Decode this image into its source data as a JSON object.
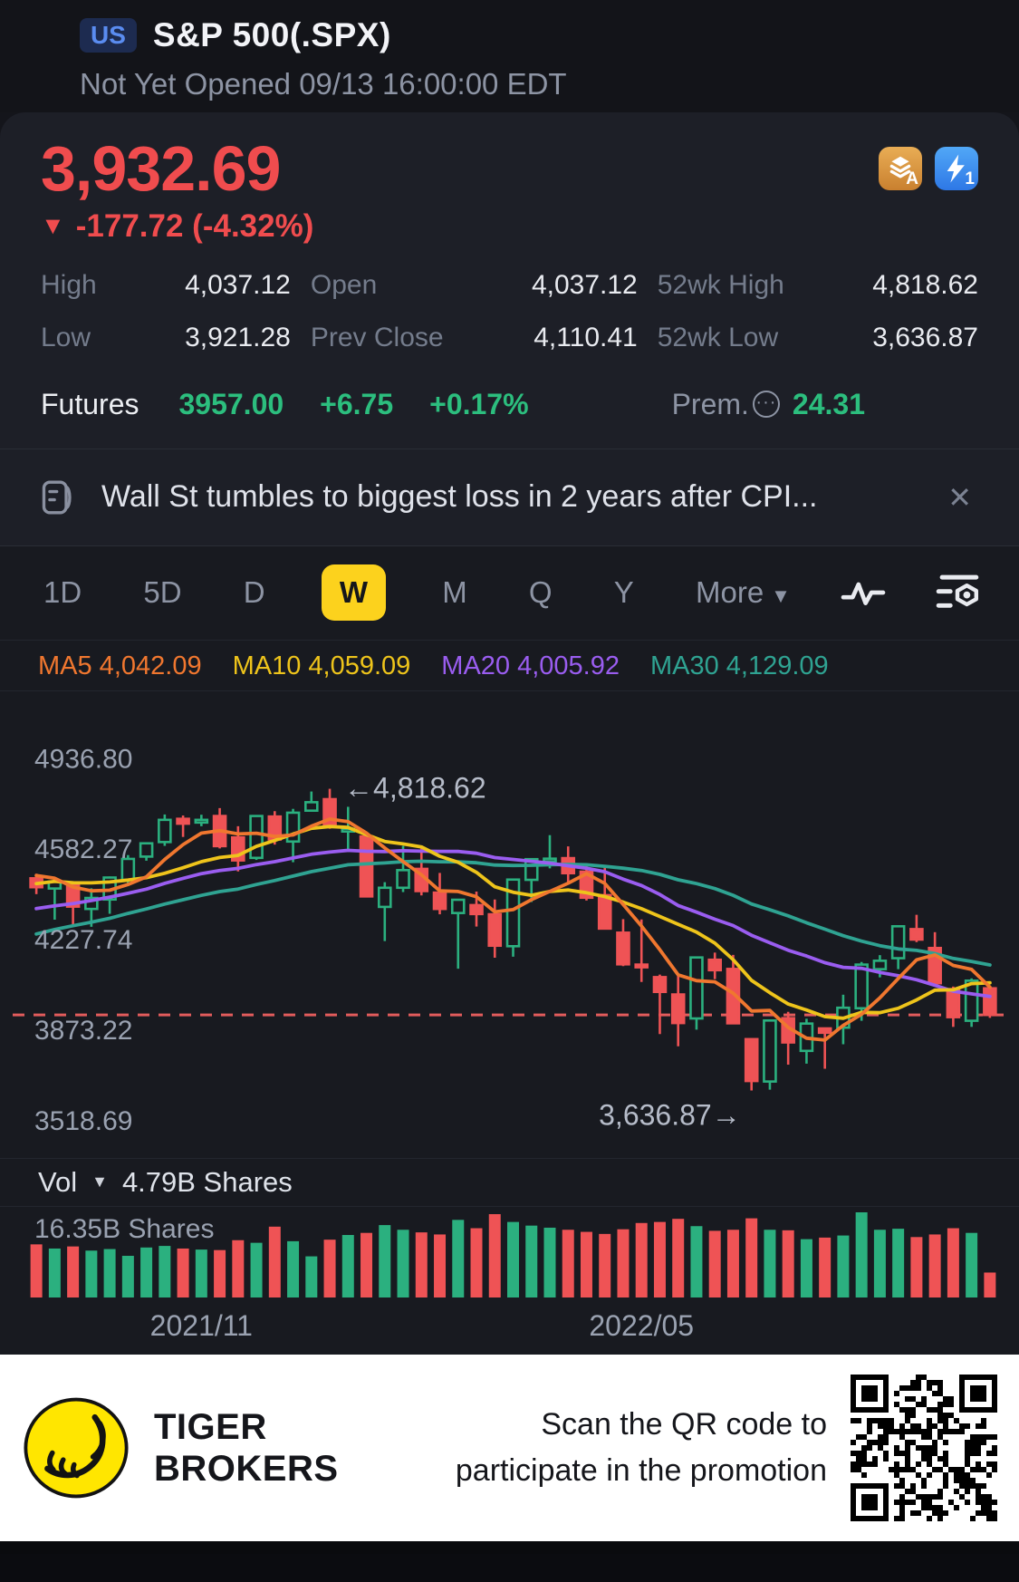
{
  "header": {
    "market_badge": "US",
    "symbol_title": "S&P 500(.SPX)",
    "status_line": "Not Yet Opened 09/13 16:00:00 EDT"
  },
  "quote": {
    "last_price": "3,932.69",
    "change_arrow": "▼",
    "change_text": "-177.72 (-4.32%)",
    "badges": [
      {
        "icon": "layers-icon",
        "label": "A"
      },
      {
        "icon": "lightning-icon",
        "label": "1"
      }
    ],
    "stats_rows": [
      [
        {
          "label": "High",
          "value": "4,037.12"
        },
        {
          "label": "Open",
          "value": "4,037.12"
        },
        {
          "label": "52wk High",
          "value": "4,818.62"
        }
      ],
      [
        {
          "label": "Low",
          "value": "3,921.28"
        },
        {
          "label": "Prev Close",
          "value": "4,110.41"
        },
        {
          "label": "52wk Low",
          "value": "3,636.87"
        }
      ]
    ],
    "futures": {
      "label": "Futures",
      "price": "3957.00",
      "change": "+6.75",
      "change_pct": "+0.17%",
      "prem_label": "Prem.",
      "prem_icon": "ellipsis-circle-icon",
      "prem_value": "24.31"
    }
  },
  "news_bar": {
    "icon": "news-doc-icon",
    "headline": "Wall St tumbles to biggest loss in 2 years after CPI...",
    "close_glyph": "✕"
  },
  "toolbar": {
    "tabs": [
      {
        "label": "1D"
      },
      {
        "label": "5D"
      },
      {
        "label": "D"
      },
      {
        "label": "W",
        "active": true
      },
      {
        "label": "M"
      },
      {
        "label": "Q"
      },
      {
        "label": "Y"
      },
      {
        "label": "More",
        "dropdown": true,
        "caret": "▼"
      }
    ],
    "icons": [
      "pulse-line-icon",
      "indicator-settings-icon"
    ]
  },
  "indicators": [
    {
      "name": "MA5",
      "value": "4,042.09",
      "color": "#f0772f"
    },
    {
      "name": "MA10",
      "value": "4,059.09",
      "color": "#eec41b"
    },
    {
      "name": "MA20",
      "value": "4,005.92",
      "color": "#9a5df0"
    },
    {
      "name": "MA30",
      "value": "4,129.09",
      "color": "#2fa392"
    }
  ],
  "volume_header": {
    "label": "Vol",
    "caret": "▼",
    "value": "4.79B Shares"
  },
  "colors": {
    "up": "#2bb07f",
    "down": "#ef5355",
    "dashed": "#e25c5c",
    "axis_text": "#9aa2b1",
    "annotation_text": "#b6bcc9",
    "accent_yellow": "#fcd21d",
    "price_red": "#f04c4e",
    "green_text": "#2cbe7e"
  },
  "chart_data": {
    "type": "candlestick",
    "timeframe": "W",
    "y_axis_labels": [
      4936.8,
      4582.27,
      4227.74,
      3873.22,
      3518.69
    ],
    "y_domain": [
      3440,
      5030
    ],
    "x_axis_labels": [
      {
        "label": "2021/11",
        "index": 9
      },
      {
        "label": "2022/05",
        "index": 33
      }
    ],
    "dashed_line_price": 3932.69,
    "high_annotation": {
      "text": "←4,818.62",
      "price": 4818.62
    },
    "low_annotation": {
      "text": "3,636.87→",
      "price": 3636.87
    },
    "ma_periods": [
      30,
      20,
      10,
      5
    ],
    "ma_colors": {
      "5": "#f0772f",
      "10": "#eec41b",
      "20": "#9a5df0",
      "30": "#2fa392"
    },
    "ma_history_closes": [
      3906,
      3932,
      3910,
      3972,
      4020,
      3968,
      4077,
      4129,
      4167,
      4180,
      4156,
      4232,
      4183,
      4155,
      4202,
      4241,
      4280,
      4247,
      4290,
      4327,
      4352,
      4369,
      4411,
      4395,
      4437,
      4468,
      4509,
      4528,
      4466,
      4458
    ],
    "candles": [
      [
        4468,
        4486,
        4406,
        4433
      ],
      [
        4428,
        4465,
        4306,
        4455
      ],
      [
        4442,
        4457,
        4288,
        4357
      ],
      [
        4348,
        4429,
        4278,
        4391
      ],
      [
        4385,
        4475,
        4329,
        4471
      ],
      [
        4462,
        4559,
        4447,
        4544
      ],
      [
        4553,
        4608,
        4537,
        4605
      ],
      [
        4610,
        4718,
        4595,
        4697
      ],
      [
        4701,
        4714,
        4630,
        4682
      ],
      [
        4689,
        4717,
        4672,
        4697
      ],
      [
        4712,
        4743,
        4585,
        4594
      ],
      [
        4628,
        4672,
        4495,
        4538
      ],
      [
        4548,
        4713,
        4540,
        4712
      ],
      [
        4710,
        4731,
        4600,
        4620
      ],
      [
        4612,
        4740,
        4531,
        4725
      ],
      [
        4733,
        4808,
        4733,
        4766
      ],
      [
        4778,
        4818.62,
        4662,
        4677
      ],
      [
        4655,
        4748,
        4582,
        4662
      ],
      [
        4632,
        4632,
        4395,
        4397
      ],
      [
        4356,
        4453,
        4222,
        4431
      ],
      [
        4431,
        4595,
        4414,
        4500
      ],
      [
        4505,
        4590,
        4401,
        4418
      ],
      [
        4412,
        4489,
        4327,
        4348
      ],
      [
        4332,
        4385,
        4114,
        4384
      ],
      [
        4363,
        4416,
        4279,
        4328
      ],
      [
        4327,
        4385,
        4157,
        4204
      ],
      [
        4202,
        4465,
        4161,
        4463
      ],
      [
        4462,
        4546,
        4375,
        4543
      ],
      [
        4541,
        4637,
        4507,
        4545
      ],
      [
        4547,
        4593,
        4450,
        4488
      ],
      [
        4494,
        4520,
        4381,
        4392
      ],
      [
        4402,
        4512,
        4267,
        4271
      ],
      [
        4255,
        4308,
        4124,
        4131
      ],
      [
        4130,
        4307,
        4062,
        4123
      ],
      [
        4081,
        4091,
        3858,
        4023
      ],
      [
        4013,
        4090,
        3810,
        3901
      ],
      [
        3919,
        4158,
        3875,
        4158
      ],
      [
        4149,
        4177,
        4073,
        4108
      ],
      [
        4113,
        4168,
        3900,
        3900
      ],
      [
        3838,
        3838,
        3636.87,
        3674
      ],
      [
        3672,
        3913,
        3640,
        3911
      ],
      [
        3920,
        3945,
        3738,
        3825
      ],
      [
        3792,
        3918,
        3742,
        3899
      ],
      [
        3880,
        3880,
        3722,
        3863
      ],
      [
        3883,
        4012,
        3818,
        3961
      ],
      [
        3959,
        4140,
        3910,
        4130
      ],
      [
        4112,
        4167,
        4080,
        4145
      ],
      [
        4155,
        4280,
        4112,
        4280
      ],
      [
        4269,
        4325,
        4218,
        4228
      ],
      [
        4195,
        4257,
        4057,
        4057
      ],
      [
        4034,
        4044,
        3886,
        3924
      ],
      [
        3910,
        4076,
        3886,
        4067
      ],
      [
        4037.12,
        4037.12,
        3921.28,
        3932.69
      ]
    ],
    "volumes": [
      10.2,
      9.4,
      9.8,
      9.0,
      9.3,
      8.0,
      9.6,
      9.9,
      9.4,
      9.2,
      9.1,
      11.0,
      10.5,
      13.6,
      10.8,
      7.9,
      11.1,
      12.0,
      12.4,
      13.9,
      13.0,
      12.5,
      12.1,
      14.9,
      13.3,
      16.0,
      14.5,
      13.8,
      13.4,
      13.0,
      12.6,
      12.2,
      13.1,
      14.3,
      14.5,
      15.1,
      13.7,
      12.8,
      13.0,
      15.2,
      13.0,
      12.9,
      11.2,
      11.5,
      11.9,
      16.35,
      13.0,
      13.2,
      11.6,
      12.1,
      13.3,
      12.4,
      4.79
    ],
    "volume_max": 16.35,
    "volume_max_label": "16.35B Shares"
  },
  "footer": {
    "logo": "tiger-brokers-logo",
    "brand_line1": "TIGER",
    "brand_line2": "BROKERS",
    "promo_line1": "Scan the QR code to",
    "promo_line2": "participate in the promotion",
    "qr": "qr-code"
  }
}
